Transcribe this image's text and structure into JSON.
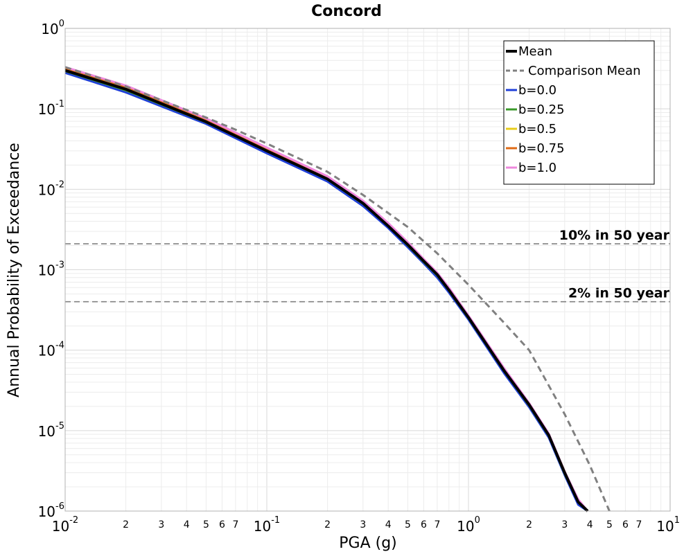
{
  "chart_data": {
    "type": "line",
    "title": "Concord",
    "xlabel": "PGA (g)",
    "ylabel": "Annual Probability of Exceedance",
    "xscale": "log",
    "yscale": "log",
    "xlim": [
      0.01,
      10
    ],
    "ylim": [
      1e-06,
      1
    ],
    "grid": true,
    "legend": "top-right",
    "x_major_ticks": [
      {
        "base": "10",
        "exp": "-2",
        "value": 0.01
      },
      {
        "base": "10",
        "exp": "-1",
        "value": 0.1
      },
      {
        "base": "10",
        "exp": "0",
        "value": 1
      },
      {
        "base": "10",
        "exp": "1",
        "value": 10
      }
    ],
    "y_major_ticks": [
      {
        "base": "10",
        "exp": "0",
        "value": 1
      },
      {
        "base": "10",
        "exp": "-1",
        "value": 0.1
      },
      {
        "base": "10",
        "exp": "-2",
        "value": 0.01
      },
      {
        "base": "10",
        "exp": "-3",
        "value": 0.001
      },
      {
        "base": "10",
        "exp": "-4",
        "value": 0.0001
      },
      {
        "base": "10",
        "exp": "-5",
        "value": 1e-05
      },
      {
        "base": "10",
        "exp": "-6",
        "value": 1e-06
      }
    ],
    "x_minor_ticks": [
      {
        "label": "2",
        "value": 0.02
      },
      {
        "label": "3",
        "value": 0.03
      },
      {
        "label": "4",
        "value": 0.04
      },
      {
        "label": "5",
        "value": 0.05
      },
      {
        "label": "6",
        "value": 0.06
      },
      {
        "label": "7",
        "value": 0.07
      },
      {
        "label": "2",
        "value": 0.2
      },
      {
        "label": "3",
        "value": 0.3
      },
      {
        "label": "4",
        "value": 0.4
      },
      {
        "label": "5",
        "value": 0.5
      },
      {
        "label": "6",
        "value": 0.6
      },
      {
        "label": "7",
        "value": 0.7
      },
      {
        "label": "2",
        "value": 2
      },
      {
        "label": "3",
        "value": 3
      },
      {
        "label": "4",
        "value": 4
      },
      {
        "label": "5",
        "value": 5
      },
      {
        "label": "6",
        "value": 6
      },
      {
        "label": "7",
        "value": 7
      }
    ],
    "reference_lines": [
      {
        "label": "10% in 50 year",
        "y": 0.0021,
        "color": "#808080"
      },
      {
        "label": "2% in 50 year",
        "y": 0.0004,
        "color": "#808080"
      }
    ],
    "series": [
      {
        "name": "b=0.0",
        "color": "#1f3fd8",
        "width": 3,
        "dash": "",
        "x": [
          0.01,
          0.02,
          0.05,
          0.1,
          0.2,
          0.3,
          0.4,
          0.5,
          0.6,
          0.7,
          0.8,
          1.0,
          1.5,
          2.0,
          2.5,
          3.0,
          3.5,
          3.9
        ],
        "y": [
          0.28,
          0.16,
          0.065,
          0.028,
          0.0125,
          0.0062,
          0.0033,
          0.0019,
          0.0012,
          0.0008,
          0.00052,
          0.00024,
          5.2e-05,
          1.95e-05,
          8.2e-06,
          2.8e-06,
          1.2e-06,
          9.5e-07
        ]
      },
      {
        "name": "b=0.25",
        "color": "#3a9a2a",
        "width": 3,
        "dash": "",
        "x": [
          0.01,
          0.02,
          0.05,
          0.1,
          0.2,
          0.3,
          0.4,
          0.5,
          0.6,
          0.7,
          0.8,
          1.0,
          1.5,
          2.0,
          2.5,
          3.0,
          3.5,
          3.9
        ],
        "y": [
          0.295,
          0.17,
          0.068,
          0.03,
          0.0132,
          0.0066,
          0.0035,
          0.002,
          0.00125,
          0.00085,
          0.00055,
          0.00025,
          5.5e-05,
          2.05e-05,
          8.6e-06,
          2.9e-06,
          1.3e-06,
          9.7e-07
        ]
      },
      {
        "name": "b=0.5",
        "color": "#e8cc1a",
        "width": 3,
        "dash": "",
        "x": [
          0.01,
          0.02,
          0.05,
          0.1,
          0.2,
          0.3,
          0.4,
          0.5,
          0.6,
          0.7,
          0.8,
          1.0,
          1.5,
          2.0,
          2.5,
          3.0,
          3.5,
          3.9
        ],
        "y": [
          0.305,
          0.178,
          0.07,
          0.031,
          0.0136,
          0.0068,
          0.0036,
          0.0021,
          0.0013,
          0.00088,
          0.00057,
          0.00026,
          5.7e-05,
          2.12e-05,
          8.9e-06,
          3e-06,
          1.3e-06,
          9.8e-07
        ]
      },
      {
        "name": "b=0.75",
        "color": "#e06a14",
        "width": 3,
        "dash": "",
        "x": [
          0.01,
          0.02,
          0.05,
          0.1,
          0.2,
          0.3,
          0.4,
          0.5,
          0.6,
          0.7,
          0.8,
          1.0,
          1.5,
          2.0,
          2.5,
          3.0,
          3.5,
          3.9
        ],
        "y": [
          0.315,
          0.185,
          0.073,
          0.032,
          0.014,
          0.007,
          0.0037,
          0.00215,
          0.00133,
          0.0009,
          0.00058,
          0.000265,
          5.8e-05,
          2.16e-05,
          9e-06,
          3.1e-06,
          1.3e-06,
          9.9e-07
        ]
      },
      {
        "name": "b=1.0",
        "color": "#ee88dd",
        "width": 3,
        "dash": "",
        "x": [
          0.01,
          0.02,
          0.05,
          0.1,
          0.2,
          0.3,
          0.4,
          0.5,
          0.6,
          0.7,
          0.8,
          1.0,
          1.5,
          2.0,
          2.5,
          3.0,
          3.5,
          3.9
        ],
        "y": [
          0.33,
          0.195,
          0.076,
          0.033,
          0.0145,
          0.0072,
          0.0038,
          0.0022,
          0.00136,
          0.00092,
          0.0006,
          0.00027,
          6e-05,
          2.2e-05,
          9.2e-06,
          3.1e-06,
          1.4e-06,
          1e-06
        ]
      },
      {
        "name": "Mean",
        "color": "#000000",
        "width": 4,
        "dash": "",
        "x": [
          0.01,
          0.02,
          0.05,
          0.1,
          0.2,
          0.3,
          0.4,
          0.5,
          0.6,
          0.7,
          0.8,
          1.0,
          1.5,
          2.0,
          2.5,
          3.0,
          3.5,
          3.9
        ],
        "y": [
          0.3,
          0.175,
          0.069,
          0.03,
          0.0134,
          0.0067,
          0.0035,
          0.00205,
          0.00128,
          0.00087,
          0.00056,
          0.000255,
          5.6e-05,
          2.1e-05,
          8.8e-06,
          3e-06,
          1.3e-06,
          9.8e-07
        ]
      },
      {
        "name": "Comparison Mean",
        "color": "#808080",
        "width": 3,
        "dash": "9,6",
        "x": [
          0.01,
          0.02,
          0.05,
          0.07,
          0.1,
          0.2,
          0.3,
          0.5,
          0.7,
          1.0,
          1.5,
          2.0,
          3.0,
          4.0,
          5.0
        ],
        "y": [
          0.33,
          0.19,
          0.078,
          0.055,
          0.037,
          0.0165,
          0.0085,
          0.0034,
          0.0016,
          0.00065,
          0.00022,
          0.0001,
          1.6e-05,
          3.7e-06,
          9.8e-07
        ]
      }
    ],
    "legend_order": [
      "Mean",
      "Comparison Mean",
      "b=0.0",
      "b=0.25",
      "b=0.5",
      "b=0.75",
      "b=1.0"
    ]
  }
}
